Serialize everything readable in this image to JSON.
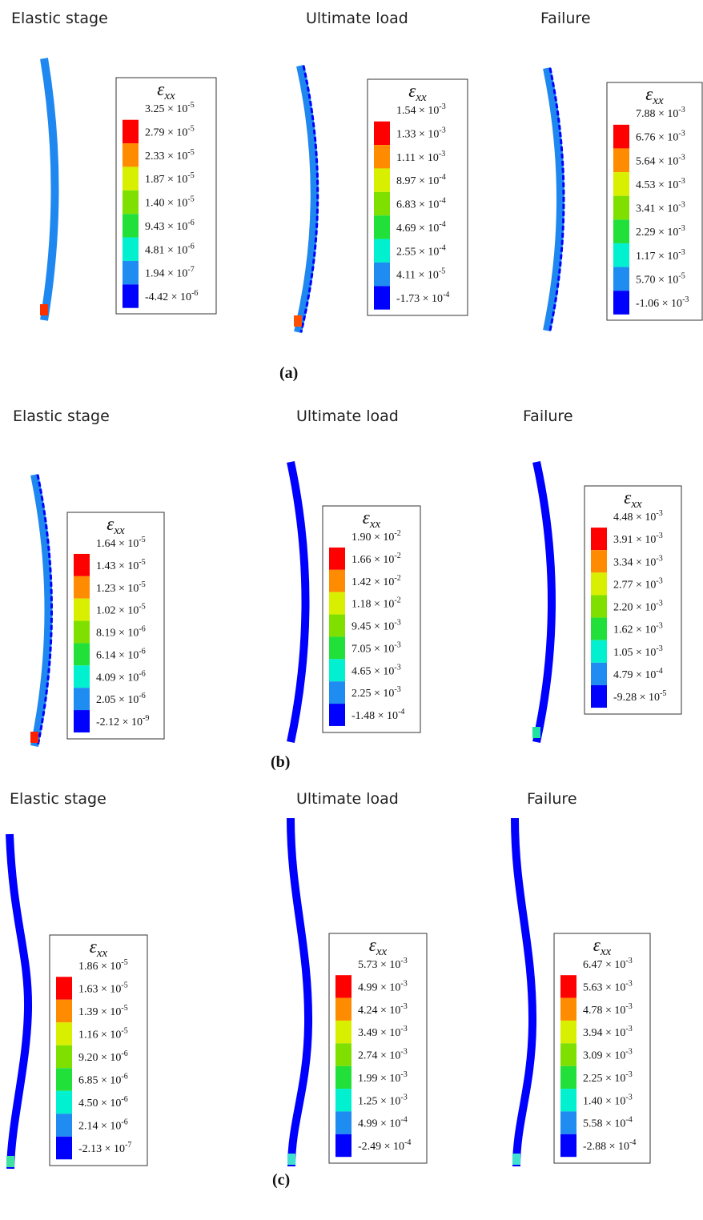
{
  "figure": {
    "legend_colors": [
      "#ff0000",
      "#ff8c00",
      "#d8f000",
      "#7fe000",
      "#22e03a",
      "#00f0d0",
      "#1e8cf0",
      "#0000ff"
    ],
    "panels": [
      {
        "label": "(a)",
        "subplots": [
          {
            "title": "Elastic stage",
            "legend": {
              "symbol": "ε",
              "subscript": "xx",
              "labels": [
                [
                  "3.25 × 10",
                  "-5"
                ],
                [
                  "2.79 × 10",
                  "-5"
                ],
                [
                  "2.33 × 10",
                  "-5"
                ],
                [
                  "1.87 × 10",
                  "-5"
                ],
                [
                  "1.40 × 10",
                  "-5"
                ],
                [
                  "9.43 × 10",
                  "-6"
                ],
                [
                  "4.81 × 10",
                  "-6"
                ],
                [
                  "1.94 × 10",
                  "-7"
                ],
                [
                  "-4.42 × 10",
                  "-6"
                ]
              ]
            }
          },
          {
            "title": "Ultimate load",
            "legend": {
              "symbol": "ε",
              "subscript": "xx",
              "labels": [
                [
                  "1.54 × 10",
                  "-3"
                ],
                [
                  "1.33 × 10",
                  "-3"
                ],
                [
                  "1.11 × 10",
                  "-3"
                ],
                [
                  "8.97 × 10",
                  "-4"
                ],
                [
                  "6.83 × 10",
                  "-4"
                ],
                [
                  "4.69 × 10",
                  "-4"
                ],
                [
                  "2.55 × 10",
                  "-4"
                ],
                [
                  "4.11 × 10",
                  "-5"
                ],
                [
                  "-1.73 × 10",
                  "-4"
                ]
              ]
            }
          },
          {
            "title": "Failure",
            "legend": {
              "symbol": "ε",
              "subscript": "xx",
              "labels": [
                [
                  "7.88 × 10",
                  "-3"
                ],
                [
                  "6.76 × 10",
                  "-3"
                ],
                [
                  "5.64 × 10",
                  "-3"
                ],
                [
                  "4.53 × 10",
                  "-3"
                ],
                [
                  "3.41 × 10",
                  "-3"
                ],
                [
                  "2.29 × 10",
                  "-3"
                ],
                [
                  "1.17 × 10",
                  "-3"
                ],
                [
                  "5.70 × 10",
                  "-5"
                ],
                [
                  "-1.06 × 10",
                  "-3"
                ]
              ]
            }
          }
        ]
      },
      {
        "label": "(b)",
        "subplots": [
          {
            "title": "Elastic stage",
            "legend": {
              "symbol": "ε",
              "subscript": "xx",
              "labels": [
                [
                  "1.64 × 10",
                  "-5"
                ],
                [
                  "1.43 × 10",
                  "-5"
                ],
                [
                  "1.23 × 10",
                  "-5"
                ],
                [
                  "1.02 × 10",
                  "-5"
                ],
                [
                  "8.19 × 10",
                  "-6"
                ],
                [
                  "6.14 × 10",
                  "-6"
                ],
                [
                  "4.09 × 10",
                  "-6"
                ],
                [
                  "2.05 × 10",
                  "-6"
                ],
                [
                  "-2.12 × 10",
                  "-9"
                ]
              ]
            }
          },
          {
            "title": "Ultimate load",
            "legend": {
              "symbol": "ε",
              "subscript": "xx",
              "labels": [
                [
                  "1.90 × 10",
                  "-2"
                ],
                [
                  "1.66 × 10",
                  "-2"
                ],
                [
                  "1.42 × 10",
                  "-2"
                ],
                [
                  "1.18 × 10",
                  "-2"
                ],
                [
                  "9.45 × 10",
                  "-3"
                ],
                [
                  "7.05 × 10",
                  "-3"
                ],
                [
                  "4.65 × 10",
                  "-3"
                ],
                [
                  "2.25 × 10",
                  "-3"
                ],
                [
                  "-1.48 × 10",
                  "-4"
                ]
              ]
            }
          },
          {
            "title": "Failure",
            "legend": {
              "symbol": "ε",
              "subscript": "xx",
              "labels": [
                [
                  "4.48 × 10",
                  "-3"
                ],
                [
                  "3.91 × 10",
                  "-3"
                ],
                [
                  "3.34 × 10",
                  "-3"
                ],
                [
                  "2.77 × 10",
                  "-3"
                ],
                [
                  "2.20 × 10",
                  "-3"
                ],
                [
                  "1.62 × 10",
                  "-3"
                ],
                [
                  "1.05 × 10",
                  "-3"
                ],
                [
                  "4.79 × 10",
                  "-4"
                ],
                [
                  "-9.28 × 10",
                  "-5"
                ]
              ]
            }
          }
        ]
      },
      {
        "label": "(c)",
        "subplots": [
          {
            "title": "Elastic stage",
            "legend": {
              "symbol": "ε",
              "subscript": "xx",
              "labels": [
                [
                  "1.86 × 10",
                  "-5"
                ],
                [
                  "1.63 × 10",
                  "-5"
                ],
                [
                  "1.39 × 10",
                  "-5"
                ],
                [
                  "1.16 × 10",
                  "-5"
                ],
                [
                  "9.20 × 10",
                  "-6"
                ],
                [
                  "6.85 × 10",
                  "-6"
                ],
                [
                  "4.50 × 10",
                  "-6"
                ],
                [
                  "2.14 × 10",
                  "-6"
                ],
                [
                  "-2.13 × 10",
                  "-7"
                ]
              ]
            }
          },
          {
            "title": "Ultimate load",
            "legend": {
              "symbol": "ε",
              "subscript": "xx",
              "labels": [
                [
                  "5.73 × 10",
                  "-3"
                ],
                [
                  "4.99 × 10",
                  "-3"
                ],
                [
                  "4.24 × 10",
                  "-3"
                ],
                [
                  "3.49 × 10",
                  "-3"
                ],
                [
                  "2.74 × 10",
                  "-3"
                ],
                [
                  "1.99 × 10",
                  "-3"
                ],
                [
                  "1.25 × 10",
                  "-3"
                ],
                [
                  "4.99 × 10",
                  "-4"
                ],
                [
                  "-2.49 × 10",
                  "-4"
                ]
              ]
            }
          },
          {
            "title": "Failure",
            "legend": {
              "symbol": "ε",
              "subscript": "xx",
              "labels": [
                [
                  "6.47 × 10",
                  "-3"
                ],
                [
                  "5.63 × 10",
                  "-3"
                ],
                [
                  "4.78 × 10",
                  "-3"
                ],
                [
                  "3.94 × 10",
                  "-3"
                ],
                [
                  "3.09 × 10",
                  "-3"
                ],
                [
                  "2.25 × 10",
                  "-3"
                ],
                [
                  "1.40 × 10",
                  "-3"
                ],
                [
                  "5.58 × 10",
                  "-4"
                ],
                [
                  "-2.88 × 10",
                  "-4"
                ]
              ]
            }
          }
        ]
      }
    ]
  }
}
